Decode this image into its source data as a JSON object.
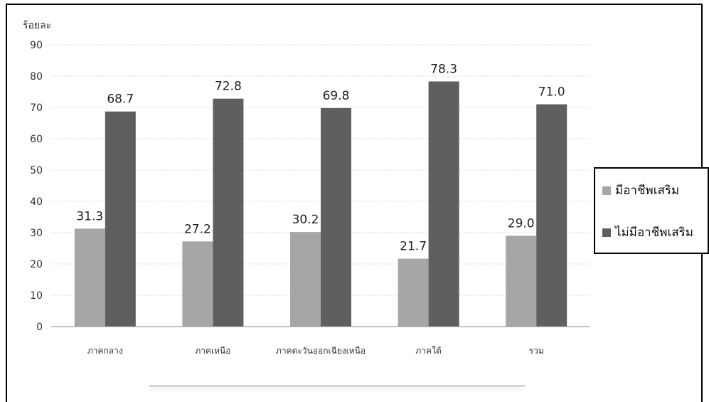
{
  "chart_data": {
    "type": "bar",
    "title": "",
    "xlabel": "",
    "ylabel": "ร้อยละ",
    "ylim": [
      0,
      90
    ],
    "ytick_step": 10,
    "grid": true,
    "legend_position": "right",
    "categories": [
      "ภาคกลาง",
      "ภาคเหนือ",
      "ภาคตะวันออกเฉียงเหนือ",
      "ภาคใต้",
      "รวม"
    ],
    "series": [
      {
        "name": "มีอาชีพเสริม",
        "color": "#a6a6a6",
        "values": [
          31.3,
          27.2,
          30.2,
          21.7,
          29.0
        ]
      },
      {
        "name": "ไม่มีอาชีพเสริม",
        "color": "#5f5f5f",
        "values": [
          68.7,
          72.8,
          69.8,
          78.3,
          71.0
        ]
      }
    ]
  }
}
